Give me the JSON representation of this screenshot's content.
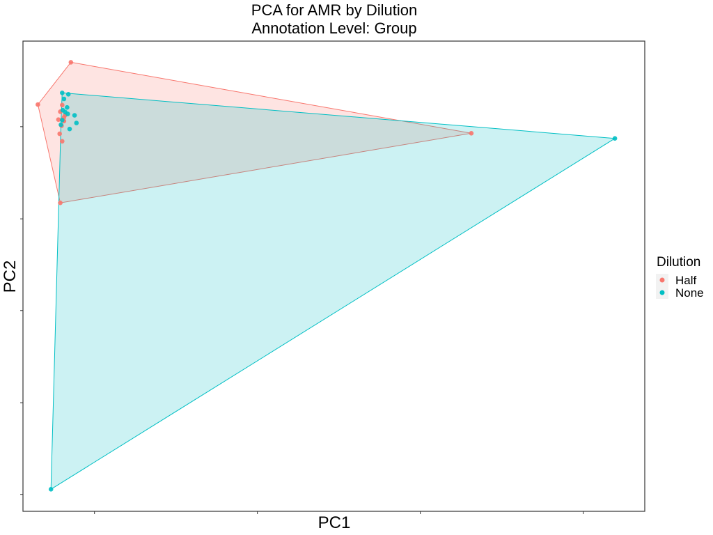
{
  "chart_data": {
    "type": "scatter",
    "title": "PCA for AMR by Dilution",
    "subtitle": "Annotation Level: Group",
    "xlabel": "PC1",
    "ylabel": "PC2",
    "x_ticks": [
      "",
      "",
      "",
      ""
    ],
    "y_ticks": [
      "",
      "",
      "",
      "",
      ""
    ],
    "xlim": [
      0,
      100
    ],
    "ylim": [
      0,
      100
    ],
    "grid": false,
    "hulls": true,
    "legend": {
      "title": "Dilution",
      "position": "right",
      "items": [
        {
          "label": "Half",
          "color": "#F8766D"
        },
        {
          "label": "None",
          "color": "#00BFC4"
        }
      ]
    },
    "series": [
      {
        "name": "Half",
        "color": "#F8766D",
        "points": [
          [
            7.7,
            95.5
          ],
          [
            2.4,
            86.5
          ],
          [
            6.3,
            86.4
          ],
          [
            6.0,
            85.0
          ],
          [
            6.8,
            84.3
          ],
          [
            5.7,
            83.3
          ],
          [
            6.6,
            83.8
          ],
          [
            6.5,
            83.2
          ],
          [
            6.2,
            82.0
          ],
          [
            5.9,
            80.3
          ],
          [
            6.3,
            78.7
          ],
          [
            6.6,
            83.0
          ],
          [
            72.1,
            80.4
          ],
          [
            6.0,
            65.6
          ]
        ],
        "hull": [
          [
            7.7,
            95.5
          ],
          [
            72.1,
            80.4
          ],
          [
            6.0,
            65.6
          ],
          [
            2.4,
            86.5
          ]
        ]
      },
      {
        "name": "None",
        "color": "#00BFC4",
        "points": [
          [
            6.3,
            89.0
          ],
          [
            7.3,
            88.7
          ],
          [
            6.6,
            87.7
          ],
          [
            7.1,
            85.9
          ],
          [
            6.4,
            85.3
          ],
          [
            6.8,
            84.9
          ],
          [
            7.2,
            84.5
          ],
          [
            8.3,
            84.2
          ],
          [
            6.3,
            83.2
          ],
          [
            8.6,
            82.6
          ],
          [
            6.1,
            82.2
          ],
          [
            7.5,
            81.3
          ],
          [
            95.2,
            79.3
          ],
          [
            4.5,
            4.7
          ]
        ],
        "hull": [
          [
            6.3,
            89.0
          ],
          [
            95.2,
            79.3
          ],
          [
            4.5,
            4.7
          ],
          [
            6.1,
            82.2
          ]
        ]
      }
    ]
  }
}
